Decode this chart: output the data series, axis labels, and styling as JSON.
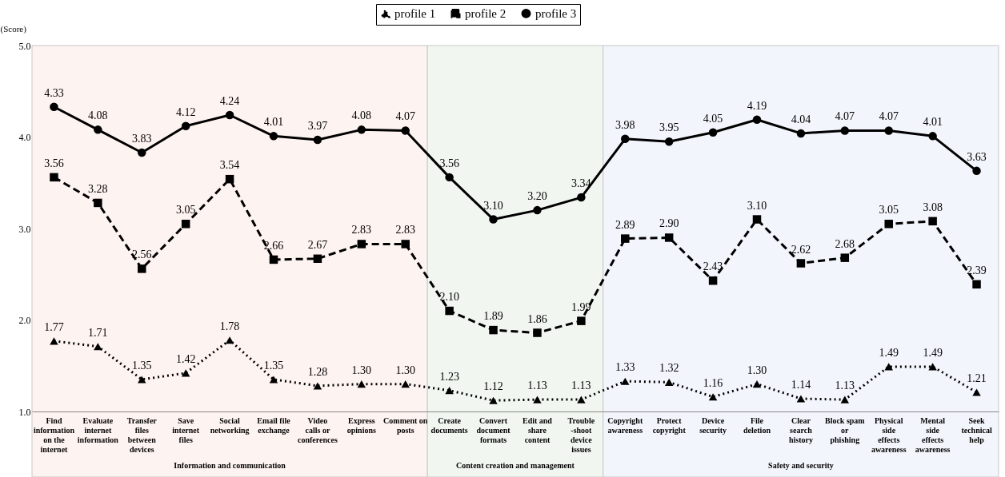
{
  "chart_data": {
    "type": "line",
    "categories": [
      "Find information on the internet",
      "Evaluate internet information",
      "Transfer files between devices",
      "Save internet files",
      "Social networking",
      "Email file exchange",
      "Video calls or conferences",
      "Express opinions",
      "Comment on posts",
      "Create documents",
      "Convert document formats",
      "Edit and share content",
      "Trouble-shoot device issues",
      "Copyright awareness",
      "Protect copyright",
      "Device security",
      "File deletion",
      "Clear search history",
      "Block spam or phishing",
      "Physical side effects awareness",
      "Mental side effects awareness",
      "Seek technical help"
    ],
    "series": [
      {
        "name": "profile 1",
        "color": "#000000",
        "marker": "triangle",
        "line_style": "dotted",
        "value_labels": [
          "1.77",
          "1.71",
          "1.35",
          "1.42",
          "1.78",
          "1.35",
          "1.28",
          "1.30",
          "1.30",
          "1.23",
          "1.12",
          "1.13",
          "1.13",
          "1.33",
          "1.32",
          "1.16",
          "1.30",
          "1.14",
          "1.13",
          "1.49",
          "1.49",
          "1.21"
        ],
        "values": [
          1.77,
          1.71,
          1.35,
          1.42,
          1.78,
          1.35,
          1.28,
          1.3,
          1.3,
          1.23,
          1.12,
          1.13,
          1.13,
          1.33,
          1.32,
          1.16,
          1.3,
          1.14,
          1.13,
          1.49,
          1.49,
          1.21
        ]
      },
      {
        "name": "profile 2",
        "color": "#000000",
        "marker": "square",
        "line_style": "dashed",
        "value_labels": [
          "3.56",
          "3.28",
          "2.56",
          "3.05",
          "3.54",
          "2.66",
          "2.67",
          "2.83",
          "2.83",
          "2.10",
          "1.89",
          "1.86",
          "1.99",
          "2.89",
          "2.90",
          "2.43",
          "3.10",
          "2.62",
          "2.68",
          "3.05",
          "3.08",
          "2.39"
        ],
        "values": [
          3.56,
          3.28,
          2.56,
          3.05,
          3.54,
          2.66,
          2.67,
          2.83,
          2.83,
          2.1,
          1.89,
          1.86,
          1.99,
          2.89,
          2.9,
          2.43,
          3.1,
          2.62,
          2.68,
          3.05,
          3.08,
          2.39
        ]
      },
      {
        "name": "profile 3",
        "color": "#000000",
        "marker": "circle",
        "line_style": "solid",
        "value_labels": [
          "4.33",
          "4.08",
          "3.83",
          "4.12",
          "4.24",
          "4.01",
          "3.97",
          "4.08",
          "4.07",
          "3.56",
          "3.10",
          "3.20",
          "3.34",
          "3.98",
          "3.95",
          "4.05",
          "4.19",
          "4.04",
          "4.07",
          "4.07",
          "4.01",
          "3.63"
        ],
        "values": [
          4.33,
          4.08,
          3.83,
          4.12,
          4.24,
          4.01,
          3.97,
          4.08,
          4.07,
          3.56,
          3.1,
          3.2,
          3.34,
          3.98,
          3.95,
          4.05,
          4.19,
          4.04,
          4.07,
          4.07,
          4.01,
          3.63
        ]
      }
    ],
    "ylabel": "(Score)",
    "ylim": [
      1,
      5
    ],
    "yticks": [
      {
        "value": 1,
        "label": "1.0"
      },
      {
        "value": 2,
        "label": "2.0"
      },
      {
        "value": 3,
        "label": "3.0"
      },
      {
        "value": 4,
        "label": "4.0"
      },
      {
        "value": 5,
        "label": "5.0"
      }
    ],
    "bands": [
      {
        "axis": "x",
        "from": "Find information on the internet",
        "to": "Comment on posts",
        "label": "Information and communication",
        "color": "#fdf3f0"
      },
      {
        "axis": "x",
        "from": "Create documents",
        "to": "Trouble-shoot device issues",
        "label": "Content creation and management",
        "color": "#f1f7f0"
      },
      {
        "axis": "x",
        "from": "Copyright awareness",
        "to": "Seek technical help",
        "label": "Safety and security",
        "color": "#f2f5fb"
      }
    ],
    "legend": "top",
    "grid": false
  }
}
